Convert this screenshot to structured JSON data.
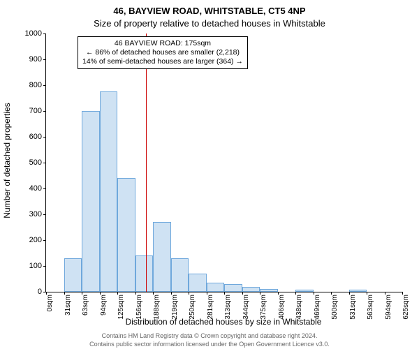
{
  "titles": {
    "line1": "46, BAYVIEW ROAD, WHITSTABLE, CT5 4NP",
    "line2": "Size of property relative to detached houses in Whitstable"
  },
  "ylabel": "Number of detached properties",
  "xlabel": "Distribution of detached houses by size in Whitstable",
  "chart": {
    "type": "histogram",
    "ylim": [
      0,
      1000
    ],
    "ytick_step": 100,
    "xlim": [
      0,
      625
    ],
    "xtick_step": 31.25,
    "xtick_unit": "sqm",
    "bar_fill": "#cfe2f3",
    "bar_stroke": "#6fa8dc",
    "background_color": "#ffffff",
    "values": [
      0,
      130,
      700,
      775,
      440,
      140,
      270,
      130,
      70,
      35,
      30,
      20,
      12,
      0,
      8,
      0,
      0,
      8,
      0,
      0
    ],
    "bin_width": 31.25
  },
  "reference_line": {
    "x": 175,
    "color": "#cc0000"
  },
  "annotation": {
    "line1": "46 BAYVIEW ROAD: 175sqm",
    "line2": "← 86% of detached houses are smaller (2,218)",
    "line3": "14% of semi-detached houses are larger (364) →"
  },
  "footer": {
    "line1": "Contains HM Land Registry data © Crown copyright and database right 2024.",
    "line2": "Contains public sector information licensed under the Open Government Licence v3.0."
  },
  "fonts": {
    "title_size": 13,
    "label_size": 12,
    "tick_size": 11,
    "annot_size": 10.5,
    "footer_size": 9
  }
}
